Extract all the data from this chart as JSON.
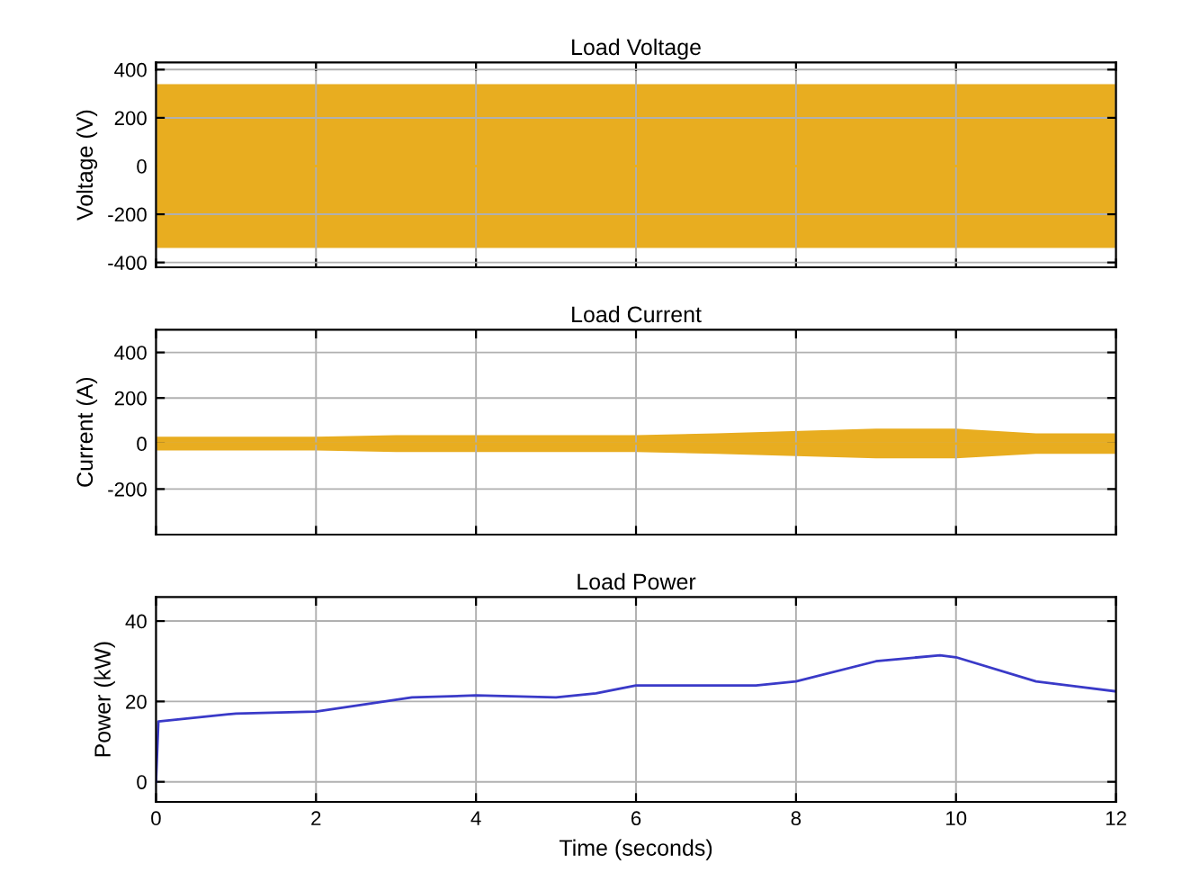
{
  "chart_data": [
    {
      "type": "line",
      "title": "Load Voltage",
      "ylabel": "Voltage (V)",
      "xlim": [
        0,
        12
      ],
      "xticks": [
        0,
        2,
        4,
        6,
        8,
        10,
        12
      ],
      "ylim": [
        -420,
        430
      ],
      "yticks": [
        -400,
        -200,
        0,
        200,
        400
      ],
      "grid": true,
      "tick_labels": "y",
      "series": [
        {
          "color": "#e8ad20",
          "x": [
            0,
            12
          ],
          "values": [
            0,
            0
          ],
          "lower": [
            -340,
            -340
          ],
          "upper": [
            340,
            340
          ]
        }
      ]
    },
    {
      "type": "line",
      "title": "Load Current",
      "ylabel": "Current (A)",
      "xlim": [
        0,
        12
      ],
      "xticks": [
        0,
        2,
        4,
        6,
        8,
        10,
        12
      ],
      "ylim": [
        -400,
        500
      ],
      "yticks": [
        -200,
        0,
        200,
        400
      ],
      "grid": true,
      "tick_labels": "y",
      "series": [
        {
          "color": "#e8ad20",
          "x": [
            0,
            2,
            3,
            6,
            7,
            9,
            10,
            11,
            12
          ],
          "values": [
            0,
            0,
            0,
            0,
            0,
            0,
            0,
            0,
            0
          ],
          "lower": [
            -30,
            -30,
            -37,
            -37,
            -45,
            -65,
            -65,
            -45,
            -45
          ],
          "upper": [
            30,
            30,
            37,
            37,
            45,
            65,
            65,
            45,
            45
          ]
        }
      ]
    },
    {
      "type": "line",
      "title": "Load Power",
      "ylabel": "Power (kW)",
      "xlabel": "Time (seconds)",
      "xlim": [
        0,
        12
      ],
      "xticks": [
        0,
        2,
        4,
        6,
        8,
        10,
        12
      ],
      "ylim": [
        -5,
        46
      ],
      "yticks": [
        0,
        20,
        40
      ],
      "grid": true,
      "series": [
        {
          "color": "#3a3ac8",
          "x": [
            0,
            0.03,
            1,
            2,
            3.2,
            4,
            5,
            5.5,
            6,
            7.5,
            8,
            9,
            9.8,
            10,
            11,
            12
          ],
          "values": [
            0,
            15,
            17,
            17.5,
            21,
            21.5,
            21,
            22,
            24,
            24,
            25,
            30,
            31.5,
            31,
            25,
            22.5
          ]
        }
      ]
    }
  ]
}
